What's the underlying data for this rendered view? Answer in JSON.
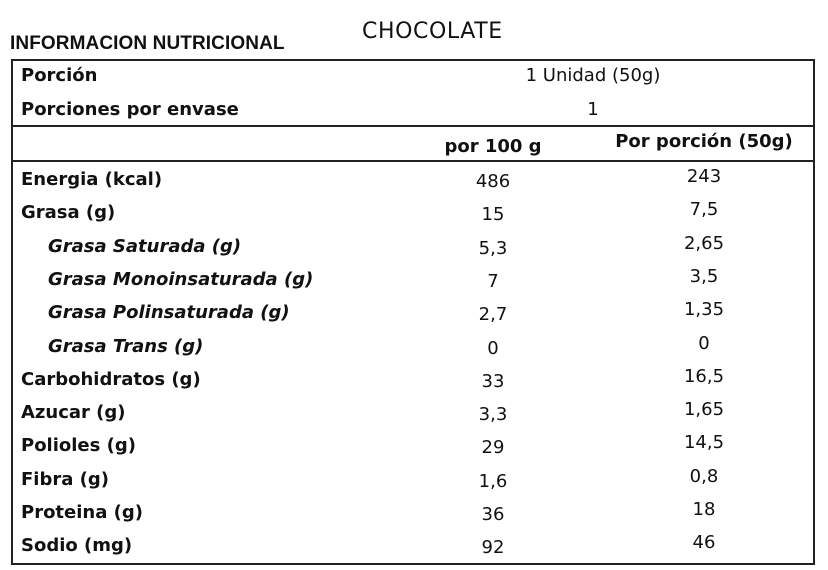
{
  "header": {
    "title": "INFORMACION NUTRICIONAL",
    "product": "CHOCOLATE"
  },
  "serving": {
    "portion_label": "Porción",
    "portion_value": "1 Unidad (50g)",
    "servings_label": "Porciones por envase",
    "servings_value": "1"
  },
  "columns": {
    "per100": "por 100 g",
    "perPortion": "Por porción (50g)"
  },
  "rows": [
    {
      "label": "Energia (kcal)",
      "per100": "486",
      "perPortion": "243",
      "sub": false
    },
    {
      "label": "Grasa (g)",
      "per100": "15",
      "perPortion": "7,5",
      "sub": false
    },
    {
      "label": "Grasa Saturada (g)",
      "per100": "5,3",
      "perPortion": "2,65",
      "sub": true
    },
    {
      "label": "Grasa Monoinsaturada (g)",
      "per100": "7",
      "perPortion": "3,5",
      "sub": true
    },
    {
      "label": "Grasa Polinsaturada (g)",
      "per100": "2,7",
      "perPortion": "1,35",
      "sub": true
    },
    {
      "label": "Grasa Trans (g)",
      "per100": "0",
      "perPortion": "0",
      "sub": true
    },
    {
      "label": "Carbohidratos (g)",
      "per100": "33",
      "perPortion": "16,5",
      "sub": false
    },
    {
      "label": "Azucar (g)",
      "per100": "3,3",
      "perPortion": "1,65",
      "sub": false
    },
    {
      "label": "Polioles (g)",
      "per100": "29",
      "perPortion": "14,5",
      "sub": false
    },
    {
      "label": "Fibra (g)",
      "per100": "1,6",
      "perPortion": "0,8",
      "sub": false
    },
    {
      "label": "Proteina (g)",
      "per100": "36",
      "perPortion": "18",
      "sub": false
    },
    {
      "label": "Sodio (mg)",
      "per100": "92",
      "perPortion": "46",
      "sub": false
    }
  ]
}
